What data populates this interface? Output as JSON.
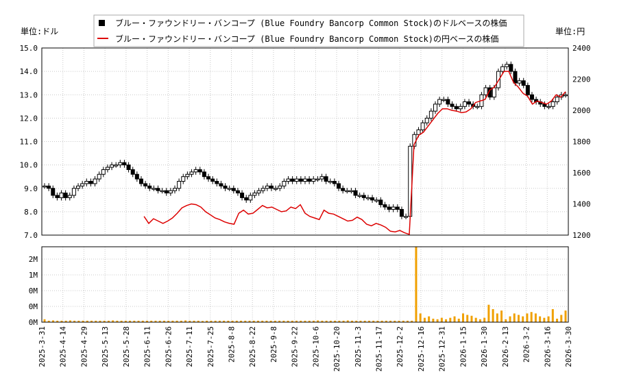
{
  "chart_data": {
    "type": "candlestick-line-bar",
    "legend": {
      "placement": "top-center",
      "items": [
        {
          "label": "ブルー・ファウンドリー・バンコープ (Blue Foundry Bancorp Common Stock)のドルベースの株価",
          "color": "#000000",
          "marker": "square"
        },
        {
          "label": "ブルー・ファウンドリー・バンコープ (Blue Foundry Bancorp Common Stock)の円ベースの株価",
          "color": "#dd0000",
          "marker": "line"
        }
      ]
    },
    "left_axis_label": "単位:ドル",
    "right_axis_label": "単位:円",
    "usd_axis": {
      "min": 7.0,
      "max": 15.0,
      "ticks": [
        "7.0",
        "8.0",
        "9.0",
        "10.0",
        "11.0",
        "12.0",
        "13.0",
        "14.0",
        "15.0"
      ]
    },
    "jpy_axis": {
      "min": 1200,
      "max": 2400,
      "ticks": [
        "1200",
        "1400",
        "1600",
        "1800",
        "2000",
        "2200",
        "2400"
      ]
    },
    "volume_axis": {
      "max": 2.6,
      "ticks": [
        "0M",
        "0M",
        "0M",
        "1M",
        "2M"
      ]
    },
    "x_tick_labels": [
      "2025-3-31",
      "2025-4-14",
      "2025-4-29",
      "2025-5-13",
      "2025-5-28",
      "2025-6-11",
      "2025-6-26",
      "2025-7-11",
      "2025-7-25",
      "2025-8-8",
      "2025-8-22",
      "2025-9-8",
      "2025-9-22",
      "2025-10-6",
      "2025-10-20",
      "2025-11-3",
      "2025-11-17",
      "2025-12-2",
      "2025-12-16",
      "2025-12-31",
      "2026-1-15",
      "2026-1-30",
      "2026-2-13",
      "2026-3-2",
      "2026-3-16",
      "2026-3-30"
    ],
    "usd_close": [
      9.1,
      9.0,
      8.7,
      8.6,
      8.8,
      8.6,
      8.7,
      9.0,
      9.1,
      9.2,
      9.3,
      9.2,
      9.4,
      9.6,
      9.8,
      9.9,
      10.0,
      10.0,
      10.1,
      10.0,
      9.8,
      9.6,
      9.4,
      9.2,
      9.1,
      9.0,
      9.0,
      8.9,
      8.9,
      8.8,
      8.9,
      9.0,
      9.3,
      9.5,
      9.6,
      9.7,
      9.8,
      9.7,
      9.5,
      9.4,
      9.3,
      9.2,
      9.1,
      9.0,
      9.0,
      8.9,
      8.8,
      8.6,
      8.5,
      8.7,
      8.8,
      8.9,
      9.0,
      9.1,
      9.0,
      9.0,
      9.1,
      9.3,
      9.4,
      9.3,
      9.4,
      9.3,
      9.4,
      9.3,
      9.4,
      9.4,
      9.5,
      9.3,
      9.3,
      9.2,
      9.0,
      8.9,
      8.9,
      8.9,
      8.7,
      8.7,
      8.6,
      8.6,
      8.5,
      8.5,
      8.3,
      8.2,
      8.1,
      8.2,
      8.1,
      7.8,
      7.8,
      10.8,
      11.3,
      11.5,
      11.8,
      12.0,
      12.3,
      12.6,
      12.8,
      12.8,
      12.6,
      12.5,
      12.4,
      12.5,
      12.7,
      12.6,
      12.5,
      12.5,
      13.0,
      13.3,
      12.9,
      13.3,
      14.0,
      14.2,
      14.3,
      14.0,
      13.5,
      13.6,
      13.4,
      13.0,
      12.8,
      12.7,
      12.6,
      12.5,
      12.5,
      12.7,
      12.9,
      13.0,
      13.0
    ],
    "jpy_close": [
      null,
      null,
      null,
      null,
      null,
      null,
      null,
      null,
      null,
      null,
      null,
      null,
      null,
      null,
      null,
      null,
      null,
      null,
      null,
      null,
      null,
      1320,
      1275,
      1305,
      1290,
      1275,
      1290,
      1310,
      1340,
      1375,
      1390,
      1400,
      1395,
      1380,
      1350,
      1330,
      1310,
      1300,
      1285,
      1275,
      1270,
      1340,
      1360,
      1335,
      1340,
      1365,
      1390,
      1375,
      1380,
      1365,
      1350,
      1355,
      1380,
      1370,
      1395,
      1340,
      1320,
      1310,
      1300,
      1360,
      1340,
      1335,
      1320,
      1305,
      1290,
      1295,
      1315,
      1300,
      1270,
      1260,
      1275,
      1265,
      1250,
      1225,
      1220,
      1230,
      1215,
      1205,
      1780,
      1840,
      1860,
      1900,
      1940,
      1980,
      2010,
      2010,
      2000,
      1995,
      1985,
      1990,
      2010,
      2050,
      2060,
      2070,
      2130,
      2150,
      2200,
      2250,
      2250,
      2180,
      2150,
      2110,
      2090,
      2040,
      2060,
      2050,
      2040,
      2060,
      2100,
      2085,
      2120
    ],
    "volume": [
      0.1,
      0.05,
      0.06,
      0.05,
      0.05,
      0.05,
      0.06,
      0.05,
      0.05,
      0.05,
      0.05,
      0.05,
      0.05,
      0.05,
      0.05,
      0.05,
      0.06,
      0.05,
      0.05,
      0.05,
      0.05,
      0.05,
      0.05,
      0.05,
      0.05,
      0.05,
      0.05,
      0.05,
      0.05,
      0.05,
      0.05,
      0.05,
      0.05,
      0.06,
      0.05,
      0.05,
      0.05,
      0.04,
      0.05,
      0.05,
      0.05,
      0.05,
      0.05,
      0.05,
      0.05,
      0.05,
      0.05,
      0.05,
      0.05,
      0.05,
      0.05,
      0.05,
      0.05,
      0.05,
      0.05,
      0.05,
      0.05,
      0.05,
      0.05,
      0.05,
      0.05,
      0.05,
      0.05,
      0.05,
      0.06,
      0.05,
      0.05,
      0.05,
      0.05,
      0.05,
      0.05,
      0.06,
      0.05,
      0.05,
      0.05,
      0.05,
      0.05,
      0.05,
      0.05,
      0.05,
      0.05,
      0.05,
      0.05,
      0.05,
      0.05,
      0.05,
      0.05,
      2.6,
      0.3,
      0.15,
      0.2,
      0.12,
      0.1,
      0.15,
      0.1,
      0.15,
      0.2,
      0.12,
      0.3,
      0.25,
      0.22,
      0.15,
      0.1,
      0.15,
      0.6,
      0.45,
      0.3,
      0.4,
      0.1,
      0.2,
      0.3,
      0.25,
      0.2,
      0.3,
      0.35,
      0.3,
      0.2,
      0.15,
      0.2,
      0.45,
      0.12,
      0.25,
      0.4
    ]
  }
}
